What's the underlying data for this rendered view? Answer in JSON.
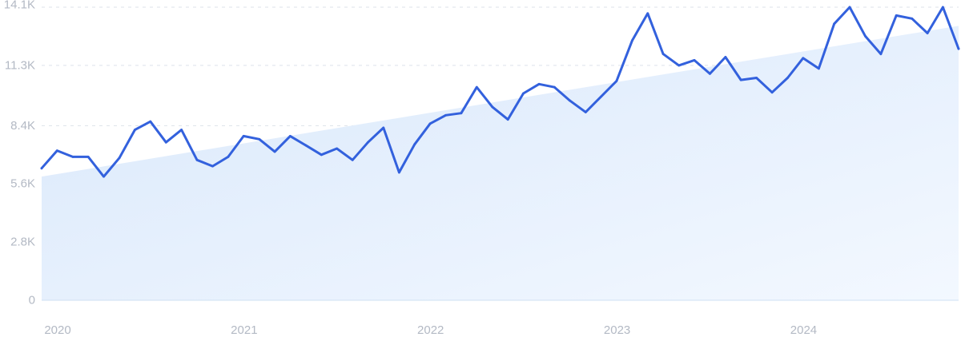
{
  "chart_data": {
    "type": "line",
    "title": "",
    "xlabel": "",
    "ylabel": "",
    "y_ticks": [
      "0",
      "2.8K",
      "5.6K",
      "8.4K",
      "11.3K",
      "14.1K"
    ],
    "y_tick_values": [
      0,
      2800,
      5600,
      8400,
      11300,
      14100
    ],
    "x_ticks": [
      "2020",
      "2021",
      "2022",
      "2023",
      "2024"
    ],
    "x_tick_values": [
      2020.0,
      2021.0,
      2022.0,
      2023.0,
      2024.0
    ],
    "ylim": [
      0,
      14100
    ],
    "xlim": [
      2020.0,
      2024.917
    ],
    "grid": true,
    "colors": {
      "line": "#3361dd",
      "area_top": "#d9e8fb",
      "area_bottom": "#f3f8ff"
    },
    "trend": {
      "start": {
        "x": 2020.0,
        "y": 5950
      },
      "end": {
        "x": 2024.917,
        "y": 13200
      }
    },
    "series": [
      {
        "x": [
          2020.0,
          2020.083,
          2020.167,
          2020.25,
          2020.333,
          2020.417,
          2020.5,
          2020.583,
          2020.667,
          2020.75,
          2020.833,
          2020.917,
          2021.0,
          2021.083,
          2021.167,
          2021.25,
          2021.333,
          2021.417,
          2021.5,
          2021.583,
          2021.667,
          2021.75,
          2021.833,
          2021.917,
          2022.0,
          2022.083,
          2022.167,
          2022.25,
          2022.333,
          2022.417,
          2022.5,
          2022.583,
          2022.667,
          2022.75,
          2022.833,
          2022.917,
          2023.0,
          2023.083,
          2023.167,
          2023.25,
          2023.333,
          2023.417,
          2023.5,
          2023.583,
          2023.667,
          2023.75,
          2023.833,
          2023.917,
          2024.0,
          2024.083,
          2024.167,
          2024.25,
          2024.333,
          2024.417,
          2024.5,
          2024.583,
          2024.667,
          2024.75,
          2024.833,
          2024.917
        ],
        "values": [
          6350,
          7200,
          6900,
          6900,
          5950,
          6850,
          8200,
          8600,
          7600,
          8200,
          6750,
          6450,
          6900,
          7900,
          7750,
          7150,
          7900,
          7450,
          7000,
          7300,
          6750,
          7600,
          8300,
          6150,
          7500,
          8500,
          8900,
          9000,
          10250,
          9300,
          8700,
          9950,
          10400,
          10250,
          9600,
          9050,
          9800,
          10550,
          12500,
          13800,
          11850,
          11300,
          11550,
          10900,
          11700,
          10600,
          10700,
          10000,
          10700,
          11650,
          11150,
          13300,
          14100,
          12700,
          11850,
          13700,
          13550,
          12850,
          14100,
          12100
        ]
      }
    ]
  }
}
